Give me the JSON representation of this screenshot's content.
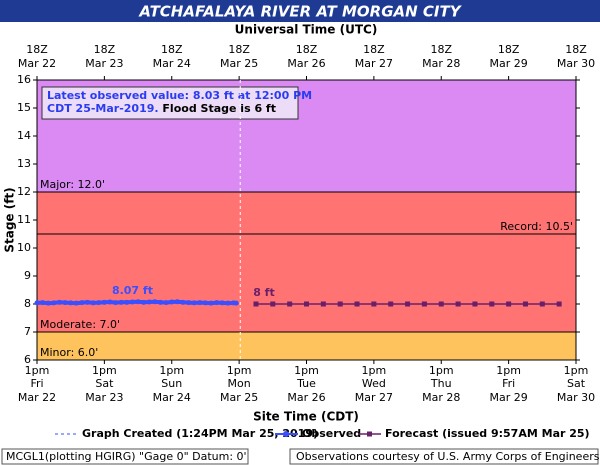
{
  "chart_data": {
    "type": "hydrograph",
    "title": "ATCHAFALAYA RIVER AT MORGAN CITY",
    "top_axis_label": "Universal Time (UTC)",
    "x_label": "Site Time (CDT)",
    "y_label": "Stage (ft)",
    "xlim": [
      "2019-03-22T13:00",
      "2019-03-30T13:00"
    ],
    "ylim": [
      6,
      16
    ],
    "yticks": [
      6,
      7,
      8,
      9,
      10,
      11,
      12,
      13,
      14,
      15,
      16
    ],
    "xticks": [
      {
        "value": "2019-03-22T13:00",
        "label": "1pm"
      },
      {
        "value": "2019-03-23T13:00",
        "label": "1pm"
      },
      {
        "value": "2019-03-24T13:00",
        "label": "1pm"
      },
      {
        "value": "2019-03-25T13:00",
        "label": "1pm"
      },
      {
        "value": "2019-03-26T13:00",
        "label": "1pm"
      },
      {
        "value": "2019-03-27T13:00",
        "label": "1pm"
      },
      {
        "value": "2019-03-28T13:00",
        "label": "1pm"
      },
      {
        "value": "2019-03-29T13:00",
        "label": "1pm"
      },
      {
        "value": "2019-03-30T13:00",
        "label": "1pm"
      }
    ],
    "xtick_days": [
      "Fri",
      "Sat",
      "Sun",
      "Mon",
      "Tue",
      "Wed",
      "Thu",
      "Fri",
      "Sat"
    ],
    "xtick_dates": [
      "Mar 22",
      "Mar 23",
      "Mar 24",
      "Mar 25",
      "Mar 26",
      "Mar 27",
      "Mar 28",
      "Mar 29",
      "Mar 30"
    ],
    "top_xticks": [
      {
        "value": "2019-03-22T13:00",
        "label": "18Z"
      },
      {
        "value": "2019-03-23T13:00",
        "label": "18Z"
      },
      {
        "value": "2019-03-24T13:00",
        "label": "18Z"
      },
      {
        "value": "2019-03-25T13:00",
        "label": "18Z"
      },
      {
        "value": "2019-03-26T13:00",
        "label": "18Z"
      },
      {
        "value": "2019-03-27T13:00",
        "label": "18Z"
      },
      {
        "value": "2019-03-28T13:00",
        "label": "18Z"
      },
      {
        "value": "2019-03-29T13:00",
        "label": "18Z"
      },
      {
        "value": "2019-03-30T13:00",
        "label": "18Z"
      }
    ],
    "top_xtick_dates": [
      "Mar 22",
      "Mar 23",
      "Mar 24",
      "Mar 25",
      "Mar 26",
      "Mar 27",
      "Mar 28",
      "Mar 29",
      "Mar 30"
    ],
    "flood_levels": [
      {
        "label": "Minor: 6.0'",
        "value": 6,
        "color": "#ffc35e",
        "side": "left"
      },
      {
        "label": "Moderate: 7.0'",
        "value": 7,
        "color": "#ff7373",
        "side": "left"
      },
      {
        "label": "Record: 10.5'",
        "value": 10.5,
        "side": "right"
      },
      {
        "label": "Major: 12.0'",
        "value": 12,
        "color": "#da8af2",
        "side": "left"
      }
    ],
    "created": {
      "x": "2019-03-25T13:24",
      "label": "Graph Created (1:24PM Mar 25, 2019)"
    },
    "series": [
      {
        "name": "Observed",
        "color": "#3a50ff",
        "x": [
          "2019-03-22T13:00",
          "2019-03-22T15:00",
          "2019-03-22T17:00",
          "2019-03-22T19:00",
          "2019-03-22T21:00",
          "2019-03-22T23:00",
          "2019-03-23T01:00",
          "2019-03-23T03:00",
          "2019-03-23T05:00",
          "2019-03-23T07:00",
          "2019-03-23T09:00",
          "2019-03-23T11:00",
          "2019-03-23T13:00",
          "2019-03-23T15:00",
          "2019-03-23T17:00",
          "2019-03-23T19:00",
          "2019-03-23T21:00",
          "2019-03-23T23:00",
          "2019-03-24T01:00",
          "2019-03-24T03:00",
          "2019-03-24T05:00",
          "2019-03-24T07:00",
          "2019-03-24T09:00",
          "2019-03-24T11:00",
          "2019-03-24T13:00",
          "2019-03-24T15:00",
          "2019-03-24T17:00",
          "2019-03-24T19:00",
          "2019-03-24T21:00",
          "2019-03-24T23:00",
          "2019-03-25T01:00",
          "2019-03-25T03:00",
          "2019-03-25T05:00",
          "2019-03-25T07:00",
          "2019-03-25T09:00",
          "2019-03-25T11:00",
          "2019-03-25T12:00"
        ],
        "values": [
          8.04,
          8.05,
          8.03,
          8.04,
          8.06,
          8.05,
          8.04,
          8.03,
          8.05,
          8.06,
          8.04,
          8.05,
          8.06,
          8.07,
          8.05,
          8.06,
          8.06,
          8.07,
          8.08,
          8.06,
          8.07,
          8.08,
          8.06,
          8.05,
          8.07,
          8.08,
          8.06,
          8.05,
          8.04,
          8.05,
          8.04,
          8.03,
          8.05,
          8.04,
          8.03,
          8.04,
          8.03
        ],
        "annotation": {
          "x": "2019-03-23T23:00",
          "value": 8.07,
          "label": "8.07 ft"
        }
      },
      {
        "name": "Forecast (issued 9:57AM Mar 25)",
        "color": "#6a1f6a",
        "x": [
          "2019-03-25T19:00",
          "2019-03-26T01:00",
          "2019-03-26T07:00",
          "2019-03-26T13:00",
          "2019-03-26T19:00",
          "2019-03-27T01:00",
          "2019-03-27T07:00",
          "2019-03-27T13:00",
          "2019-03-27T19:00",
          "2019-03-28T01:00",
          "2019-03-28T07:00",
          "2019-03-28T13:00",
          "2019-03-28T19:00",
          "2019-03-29T01:00",
          "2019-03-29T07:00",
          "2019-03-29T13:00",
          "2019-03-29T19:00",
          "2019-03-30T01:00",
          "2019-03-30T07:00"
        ],
        "values": [
          8,
          8,
          8,
          8,
          8,
          8,
          8,
          8,
          8,
          8,
          8,
          8,
          8,
          8,
          8,
          8,
          8,
          8,
          8
        ],
        "annotation": {
          "x": "2019-03-25T19:00",
          "value": 8,
          "label": "8 ft"
        }
      }
    ],
    "info_box": {
      "line1": "Latest observed value: 8.03 ft at 12:00 PM",
      "line2": "CDT 25-Mar-2019.",
      "flood_stage": "Flood Stage is 6 ft"
    },
    "footer_left": "MCGL1(plotting HGIRG) \"Gage 0\" Datum: 0'",
    "footer_right": "Observations courtesy of U.S. Army Corps of Engineers"
  }
}
